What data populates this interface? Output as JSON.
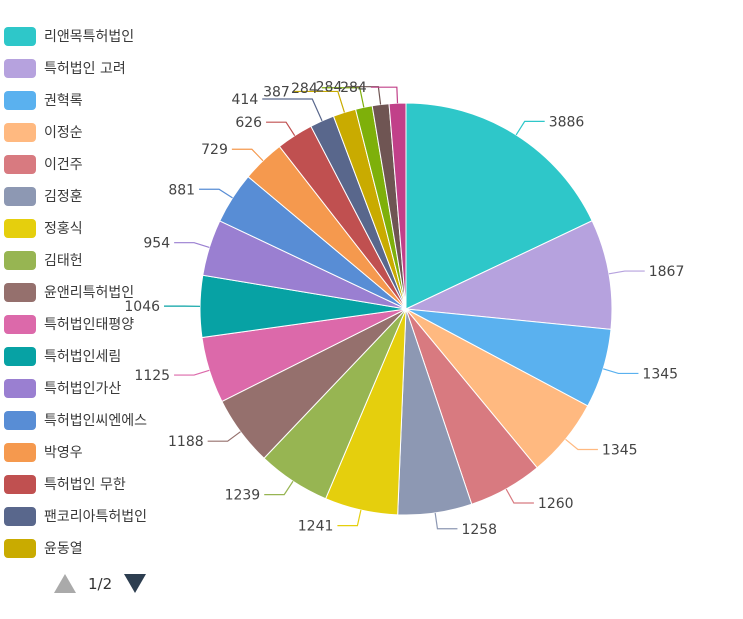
{
  "chart_data": {
    "type": "pie",
    "legend_position": "left",
    "slices": [
      {
        "name": "리앤목특허법인",
        "value": 3886,
        "color": "#2ec7c9"
      },
      {
        "name": "특허법인 고려",
        "value": 1867,
        "color": "#b6a2de"
      },
      {
        "name": "권혁록",
        "value": 1345,
        "color": "#5ab1ef"
      },
      {
        "name": "이정순",
        "value": 1345,
        "color": "#ffb980"
      },
      {
        "name": "이건주",
        "value": 1260,
        "color": "#d87a80"
      },
      {
        "name": "김정훈",
        "value": 1258,
        "color": "#8d98b3"
      },
      {
        "name": "정홍식",
        "value": 1241,
        "color": "#e5cf0d"
      },
      {
        "name": "김태헌",
        "value": 1239,
        "color": "#97b552"
      },
      {
        "name": "윤앤리특허법인",
        "value": 1188,
        "color": "#95706d"
      },
      {
        "name": "특허법인태평양",
        "value": 1125,
        "color": "#dc69aa"
      },
      {
        "name": "특허법인세림",
        "value": 1046,
        "color": "#07a2a4"
      },
      {
        "name": "특허법인가산",
        "value": 954,
        "color": "#9a7fd1"
      },
      {
        "name": "특허법인씨엔에스",
        "value": 881,
        "color": "#588dd5"
      },
      {
        "name": "박영우",
        "value": 729,
        "color": "#f5994e"
      },
      {
        "name": "특허법인 무한",
        "value": 626,
        "color": "#c05050"
      },
      {
        "name": "팬코리아특허법인",
        "value": 414,
        "color": "#59678c"
      },
      {
        "name": "윤동열",
        "value": 387,
        "color": "#c9ab00"
      },
      {
        "name": "",
        "value": 284,
        "color": "#7eb00a"
      },
      {
        "name": "",
        "value": 284,
        "color": "#6f5553"
      },
      {
        "name": "",
        "value": 284,
        "color": "#c14089"
      }
    ]
  },
  "legend": {
    "items": [
      {
        "label": "리앤목특허법인",
        "color": "#2ec7c9"
      },
      {
        "label": "특허법인 고려",
        "color": "#b6a2de"
      },
      {
        "label": "권혁록",
        "color": "#5ab1ef"
      },
      {
        "label": "이정순",
        "color": "#ffb980"
      },
      {
        "label": "이건주",
        "color": "#d87a80"
      },
      {
        "label": "김정훈",
        "color": "#8d98b3"
      },
      {
        "label": "정홍식",
        "color": "#e5cf0d"
      },
      {
        "label": "김태헌",
        "color": "#97b552"
      },
      {
        "label": "윤앤리특허법인",
        "color": "#95706d"
      },
      {
        "label": "특허법인태평양",
        "color": "#dc69aa"
      },
      {
        "label": "특허법인세림",
        "color": "#07a2a4"
      },
      {
        "label": "특허법인가산",
        "color": "#9a7fd1"
      },
      {
        "label": "특허법인씨엔에스",
        "color": "#588dd5"
      },
      {
        "label": "박영우",
        "color": "#f5994e"
      },
      {
        "label": "특허법인 무한",
        "color": "#c05050"
      },
      {
        "label": "팬코리아특허법인",
        "color": "#59678c"
      },
      {
        "label": "윤동열",
        "color": "#c9ab00"
      }
    ],
    "pagination": {
      "text": "1/2",
      "prev_icon": "triangle-up-icon",
      "next_icon": "triangle-down-icon"
    }
  }
}
